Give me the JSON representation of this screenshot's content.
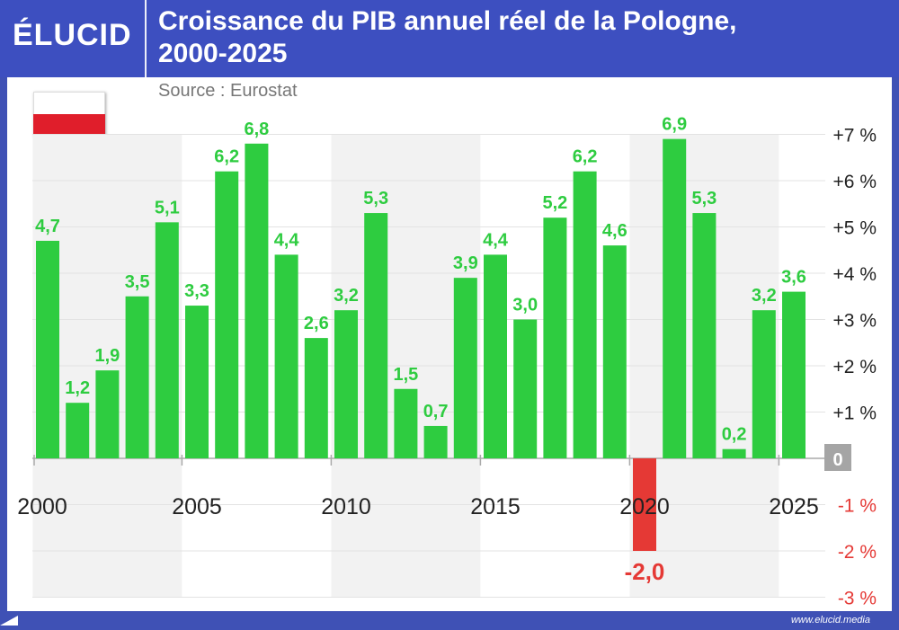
{
  "header": {
    "brand": "ÉLUCID",
    "title_line1": "Croissance du PIB annuel réel de la Pologne,",
    "title_line2": "2000-2025"
  },
  "source": "Source : Eurostat",
  "footer": {
    "url": "www.elucid.media"
  },
  "flag": {
    "country": "Pologne",
    "colors": [
      "#ffffff",
      "#e01e2b"
    ]
  },
  "colors": {
    "positive": "#2ecc40",
    "negative": "#e53935",
    "label_positive": "#2ecc40",
    "label_negative": "#e53935",
    "band": "#f2f2f2"
  },
  "chart_data": {
    "type": "bar",
    "title": "Croissance du PIB annuel réel de la Pologne, 2000-2025",
    "categories": [
      2000,
      2001,
      2002,
      2003,
      2004,
      2005,
      2006,
      2007,
      2008,
      2009,
      2010,
      2011,
      2012,
      2013,
      2014,
      2015,
      2016,
      2017,
      2018,
      2019,
      2020,
      2021,
      2022,
      2023,
      2024,
      2025
    ],
    "values": [
      4.7,
      1.2,
      1.9,
      3.5,
      5.1,
      3.3,
      6.2,
      6.8,
      4.4,
      2.6,
      3.2,
      5.3,
      1.5,
      0.7,
      3.9,
      4.4,
      3.0,
      5.2,
      6.2,
      4.6,
      -2.0,
      6.9,
      5.3,
      0.2,
      3.2,
      3.6
    ],
    "value_labels": [
      "4,7",
      "1,2",
      "1,9",
      "3,5",
      "5,1",
      "3,3",
      "6,2",
      "6,8",
      "4,4",
      "2,6",
      "3,2",
      "5,3",
      "1,5",
      "0,7",
      "3,9",
      "4,4",
      "3,0",
      "5,2",
      "6,2",
      "4,6",
      "-2,0",
      "6,9",
      "5,3",
      "0,2",
      "3,2",
      "3,6"
    ],
    "x_tick_labels": [
      "2000",
      "2005",
      "2010",
      "2015",
      "2020",
      "2025"
    ],
    "y_tick_values": [
      7,
      6,
      5,
      4,
      3,
      2,
      1,
      0,
      -1,
      -2,
      -3
    ],
    "y_tick_labels": [
      "+7 %",
      "+6 %",
      "+5 %",
      "+4 %",
      "+3 %",
      "+2 %",
      "+1 %",
      "0",
      "-1 %",
      "-2 %",
      "-3 %"
    ],
    "ylim": [
      -3,
      7
    ],
    "grid": true,
    "legend": "none"
  }
}
